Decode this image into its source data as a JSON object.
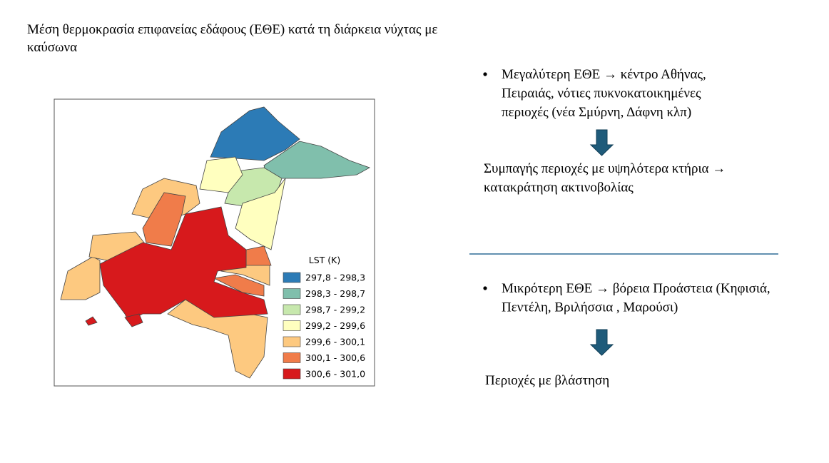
{
  "title": "Μέση θερμοκρασία επιφανείας εδάφους (ΕΘΕ) κατά τη διάρκεια νύχτας με καύσωνα",
  "map": {
    "legend": {
      "title": "LST (K)",
      "items": [
        {
          "label": "297,8 - 298,3",
          "color": "#2c7bb6"
        },
        {
          "label": "298,3 - 298,7",
          "color": "#80bfac"
        },
        {
          "label": "298,7 - 299,2",
          "color": "#c7e8ad"
        },
        {
          "label": "299,2 - 299,6",
          "color": "#ffffbf"
        },
        {
          "label": "299,6 - 300,1",
          "color": "#fdc980"
        },
        {
          "label": "300,1 - 300,6",
          "color": "#f07c4a"
        },
        {
          "label": "300,6 - 301,0",
          "color": "#d7191c"
        }
      ]
    }
  },
  "right": {
    "bullet1": [
      "Μεγαλύτερη ΕΘΕ → κέντρο Αθήνας,",
      "Πειραιάς,  νότιες πυκνοκατοικημένες",
      "περιοχές (νέα Σμύρνη, Δάφνη κλπ)"
    ],
    "result1": [
      " Συμπαγής περιοχές με υψηλότερα κτήρια →",
      "κατακράτηση ακτινοβολίας"
    ],
    "bullet2": [
      "Μικρότερη ΕΘΕ → βόρεια Προάστεια (Κηφισιά,",
      "Πεντέλη, Βριλήσσια , Μαρούσι)"
    ],
    "result2": [
      "Περιοχές με βλάστηση"
    ]
  }
}
